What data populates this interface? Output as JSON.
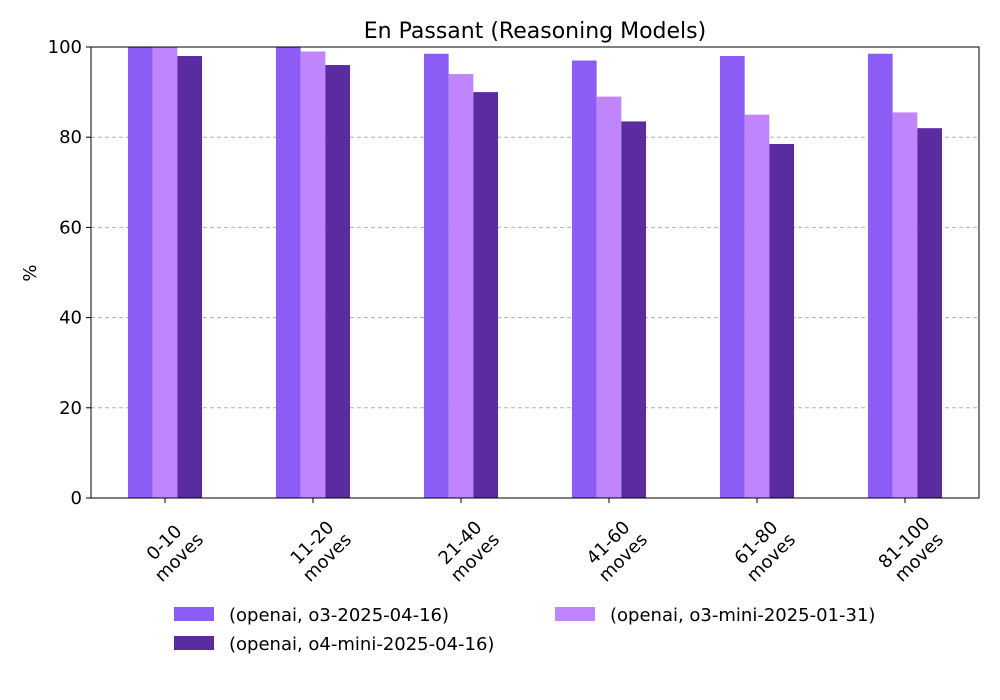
{
  "chart_data": {
    "type": "bar",
    "title": "En Passant (Reasoning Models)",
    "xlabel": "",
    "ylabel": "%",
    "ylim": [
      0,
      100
    ],
    "yticks": [
      0,
      20,
      40,
      60,
      80,
      100
    ],
    "grid": "horizontal dashed",
    "legend_position": "bottom",
    "categories": [
      [
        "0-10",
        "moves"
      ],
      [
        "11-20",
        "moves"
      ],
      [
        "21-40",
        "moves"
      ],
      [
        "41-60",
        "moves"
      ],
      [
        "61-80",
        "moves"
      ],
      [
        "81-100",
        "moves"
      ]
    ],
    "series": [
      {
        "name": "(openai, o3-2025-04-16)",
        "color": "#8b5cf6",
        "values": [
          100,
          100,
          98.5,
          97,
          98,
          98.5
        ]
      },
      {
        "name": "(openai, o3-mini-2025-01-31)",
        "color": "#c084fc",
        "values": [
          100,
          99,
          94,
          89,
          85,
          85.5
        ]
      },
      {
        "name": "(openai, o4-mini-2025-04-16)",
        "color": "#5b2ca0",
        "values": [
          98,
          96,
          90,
          83.5,
          78.5,
          82
        ]
      }
    ]
  }
}
